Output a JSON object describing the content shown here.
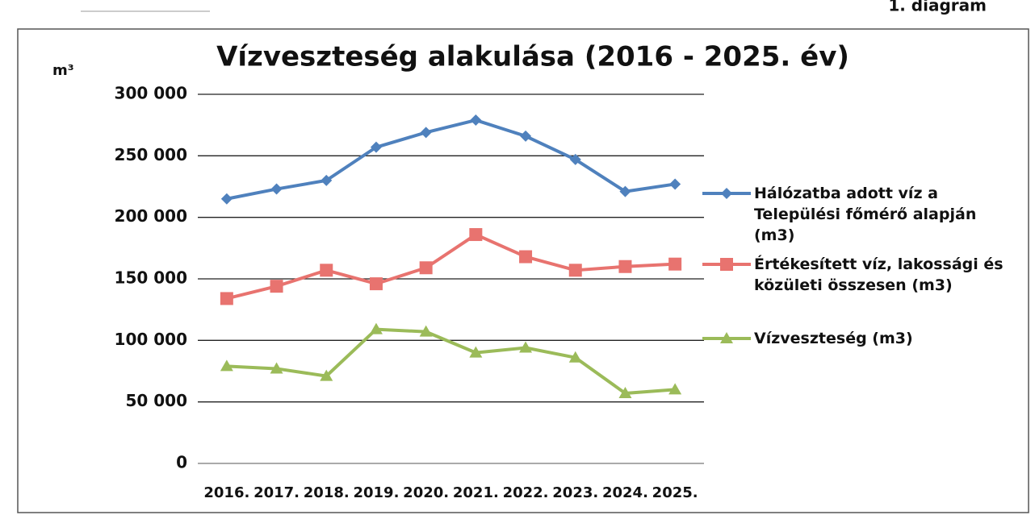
{
  "page_label": "1. diagram",
  "chart_data": {
    "type": "line",
    "title": "Vízveszteség alakulása (2016 - 2025. év)",
    "y_label": "m³",
    "categories": [
      "2016.",
      "2017.",
      "2018.",
      "2019.",
      "2020.",
      "2021.",
      "2022.",
      "2023.",
      "2024.",
      "2025."
    ],
    "series": [
      {
        "name": "Hálózatba adott víz a Települési főmérő alapján (m3)",
        "color": "#4f81bd",
        "marker": "diamond",
        "values": [
          215000,
          223000,
          230000,
          257000,
          269000,
          279000,
          266000,
          247000,
          221000,
          227000
        ]
      },
      {
        "name": "Értékesített víz, lakossági és közületi összesen (m3)",
        "color": "#e8736f",
        "marker": "square",
        "values": [
          134000,
          144000,
          157000,
          146000,
          159000,
          186000,
          168000,
          157000,
          160000,
          162000
        ]
      },
      {
        "name": "Vízveszteség (m3)",
        "color": "#9bbb59",
        "marker": "triangle",
        "values": [
          79000,
          77000,
          71000,
          109000,
          107000,
          90000,
          94000,
          86000,
          57000,
          60000
        ]
      }
    ],
    "ylim": [
      0,
      300000
    ],
    "yticks": [
      0,
      {
        "value": 50000,
        "label": "50 000"
      },
      {
        "value": 100000,
        "label": "100 000"
      },
      {
        "value": 150000,
        "label": "150 000"
      },
      {
        "value": 200000,
        "label": "200 000"
      },
      {
        "value": 250000,
        "label": "250 000"
      },
      {
        "value": 300000,
        "label": "300 000"
      }
    ],
    "grid": true,
    "legend": "right"
  }
}
